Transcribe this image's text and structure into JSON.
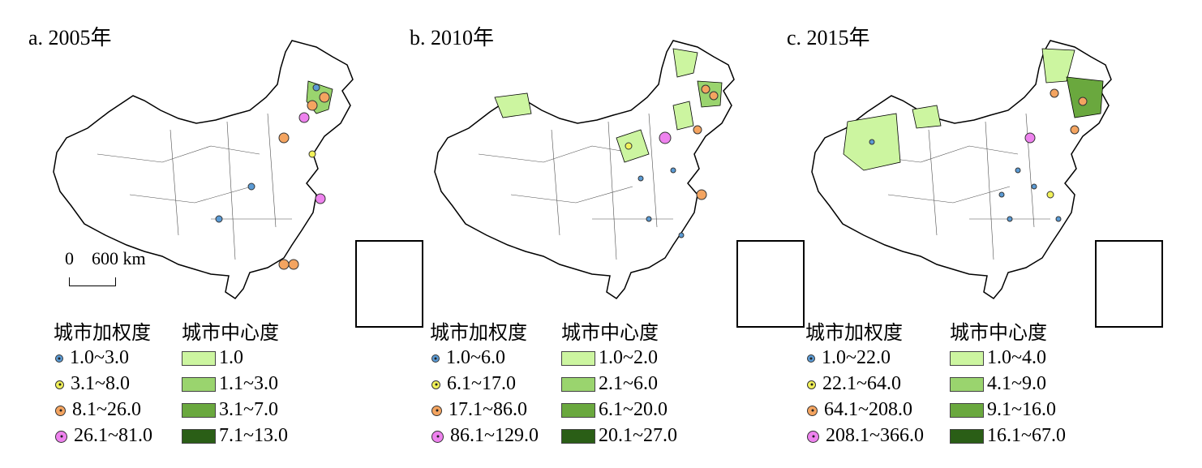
{
  "panels": [
    {
      "title": "a. 2005年",
      "weighted_degree_header": "城市加权度",
      "centrality_header": "城市中心度",
      "weighted_degree_classes": [
        "1.0~3.0",
        "3.1~8.0",
        "8.1~26.0",
        "26.1~81.0"
      ],
      "centrality_classes": [
        "1.0",
        "1.1~3.0",
        "3.1~7.0",
        "7.1~13.0"
      ]
    },
    {
      "title": "b. 2010年",
      "weighted_degree_header": "城市加权度",
      "centrality_header": "城市中心度",
      "weighted_degree_classes": [
        "1.0~6.0",
        "6.1~17.0",
        "17.1~86.0",
        "86.1~129.0"
      ],
      "centrality_classes": [
        "1.0~2.0",
        "2.1~6.0",
        "6.1~20.0",
        "20.1~27.0"
      ]
    },
    {
      "title": "c. 2015年",
      "weighted_degree_header": "城市加权度",
      "centrality_header": "城市中心度",
      "weighted_degree_classes": [
        "1.0~22.0",
        "22.1~64.0",
        "64.1~208.0",
        "208.1~366.0"
      ],
      "centrality_classes": [
        "1.0~4.0",
        "4.1~9.0",
        "9.1~16.0",
        "16.1~67.0"
      ]
    }
  ],
  "scale_bar": {
    "zero": "0",
    "distance": "600 km"
  },
  "symbol_colors": [
    "#5b9bd5",
    "#f2f25a",
    "#f4a460",
    "#ee82ee"
  ],
  "centrality_colors": [
    "#ccf5a0",
    "#9ad46e",
    "#6aa83e",
    "#2a5e16"
  ]
}
